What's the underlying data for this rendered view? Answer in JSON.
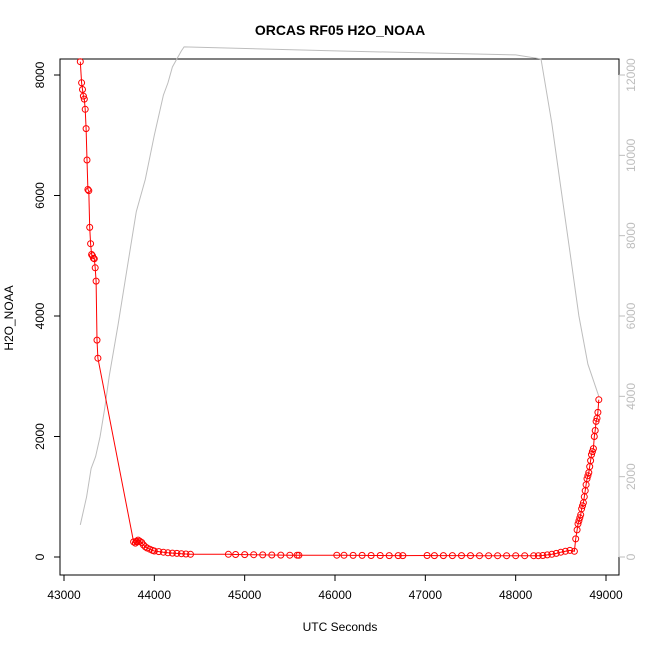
{
  "chart_data": {
    "type": "line",
    "title": "ORCAS RF05 H2O_NOAA",
    "xlabel": "UTC Seconds",
    "ylabel": "H2O_NOAA",
    "xlim": [
      43000,
      49000
    ],
    "ylim": [
      0,
      8000
    ],
    "y2lim": [
      0,
      12000
    ],
    "x_ticks": [
      "43000",
      "44000",
      "45000",
      "46000",
      "47000",
      "48000",
      "49000"
    ],
    "y_ticks": [
      "0",
      "2000",
      "4000",
      "6000",
      "8000"
    ],
    "y2_ticks": [
      "0",
      "2000",
      "4000",
      "6000",
      "8000",
      "10000",
      "12000"
    ],
    "grid": false,
    "colors": {
      "h2o": "#ff0000",
      "altitude": "#bdbdbd"
    },
    "series": [
      {
        "axis": "left",
        "style": "points-lines",
        "x": [
          43180,
          43195,
          43205,
          43215,
          43225,
          43235,
          43245,
          43255,
          43265,
          43275,
          43285,
          43295,
          43305,
          43315,
          43325,
          43335,
          43345,
          43355,
          43365,
          43375,
          43770,
          43790,
          43800,
          43810,
          43820,
          43840,
          43860,
          43880,
          43900,
          43920,
          43950,
          43980,
          44000,
          44050,
          44100,
          44150,
          44200,
          44250,
          44300,
          44350,
          44400,
          44820,
          44900,
          45000,
          45100,
          45200,
          45300,
          45400,
          45500,
          45580,
          45600,
          46020,
          46100,
          46200,
          46300,
          46400,
          46500,
          46600,
          46700,
          46750,
          47020,
          47100,
          47200,
          47300,
          47400,
          47500,
          47600,
          47700,
          47800,
          47900,
          48000,
          48100,
          48200,
          48250,
          48300,
          48350,
          48400,
          48450,
          48500,
          48550,
          48600,
          48650,
          48665,
          48680,
          48690,
          48700,
          48710,
          48720,
          48730,
          48740,
          48750,
          48760,
          48770,
          48780,
          48790,
          48800,
          48810,
          48820,
          48830,
          48840,
          48850,
          48860,
          48870,
          48880,
          48890,
          48900,
          48910,
          48920
        ],
        "y": [
          8220,
          7870,
          7760,
          7650,
          7600,
          7430,
          7110,
          6590,
          6100,
          6080,
          5470,
          5200,
          5020,
          5000,
          4960,
          4950,
          4800,
          4580,
          3600,
          3300,
          250,
          230,
          260,
          250,
          280,
          260,
          240,
          200,
          170,
          150,
          130,
          110,
          100,
          90,
          80,
          70,
          65,
          60,
          55,
          50,
          45,
          45,
          42,
          40,
          38,
          35,
          33,
          32,
          30,
          30,
          28,
          30,
          28,
          27,
          26,
          25,
          25,
          24,
          24,
          24,
          25,
          24,
          23,
          23,
          23,
          23,
          22,
          22,
          22,
          22,
          22,
          22,
          22,
          22,
          25,
          35,
          45,
          60,
          80,
          95,
          110,
          95,
          300,
          450,
          550,
          600,
          650,
          700,
          800,
          850,
          900,
          1000,
          1100,
          1200,
          1300,
          1350,
          1400,
          1500,
          1600,
          1700,
          1750,
          1800,
          2000,
          2100,
          2250,
          2300,
          2400,
          2610
        ]
      },
      {
        "axis": "right",
        "style": "line",
        "x": [
          43180,
          43250,
          43300,
          43350,
          43400,
          43450,
          43500,
          43600,
          43700,
          43800,
          43900,
          44000,
          44100,
          44150,
          44200,
          44250,
          44300,
          44330,
          46000,
          48000,
          48280,
          48400,
          48500,
          48600,
          48700,
          48800,
          48920
        ],
        "y": [
          800,
          1500,
          2200,
          2500,
          3000,
          3700,
          4500,
          5800,
          7200,
          8600,
          9400,
          10500,
          11500,
          11800,
          12200,
          12400,
          12600,
          12700,
          12600,
          12500,
          12400,
          10800,
          9200,
          7600,
          6000,
          4800,
          4000
        ]
      }
    ]
  }
}
